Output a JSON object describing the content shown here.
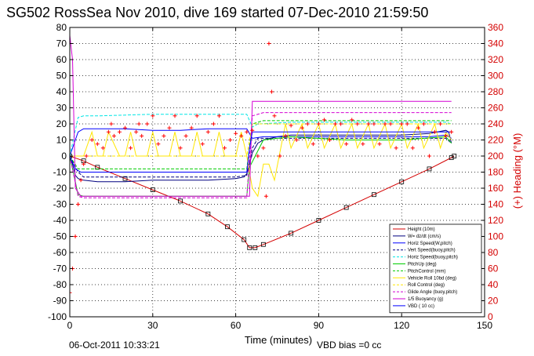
{
  "title": "SG502 RossSea Nov 2010, dive 169 started 07-Dec-2010 21:59:50",
  "footer_left": "06-Oct-2011 10:33:21",
  "footer_right": "VBD bias =0 cc",
  "chart_data": {
    "type": "line",
    "xlabel": "Time (minutes)",
    "ylabel": "",
    "ylabel_right": "(+) Heading (°M)",
    "xlim": [
      0,
      150
    ],
    "ylim": [
      -100,
      80
    ],
    "ylim_right": [
      0,
      360
    ],
    "xticks": [
      "0",
      "30",
      "60",
      "90",
      "120",
      "150"
    ],
    "yticks": [
      "80",
      "70",
      "60",
      "50",
      "40",
      "30",
      "20",
      "10",
      "0",
      "-10",
      "-20",
      "-30",
      "-40",
      "-50",
      "-60",
      "-70",
      "-80",
      "-90",
      "-100"
    ],
    "yticks_right": [
      "360",
      "340",
      "320",
      "300",
      "280",
      "260",
      "240",
      "220",
      "200",
      "180",
      "160",
      "140",
      "120",
      "100",
      "80",
      "60",
      "40",
      "20",
      "0"
    ],
    "grid": true,
    "legend_position": "bottom-right",
    "series": [
      {
        "name": "Height (10m)",
        "color": "#d40000",
        "style": "solid",
        "marker": "box",
        "x": [
          0,
          5,
          10,
          20,
          30,
          40,
          50,
          57,
          63,
          65,
          67,
          70,
          80,
          90,
          100,
          110,
          120,
          130,
          138,
          139
        ],
        "y": [
          0,
          -3,
          -7,
          -14,
          -21,
          -28,
          -36,
          -44,
          -52,
          -57,
          -57,
          -55,
          -48,
          -40,
          -32,
          -24,
          -16,
          -8,
          -1,
          0
        ]
      },
      {
        "name": "W= dz/dt (cm/s)",
        "color": "#000080",
        "style": "solid",
        "x": [
          0,
          1,
          2,
          3,
          5,
          10,
          20,
          30,
          40,
          50,
          60,
          63,
          64,
          65,
          66,
          68,
          70,
          75,
          80,
          90,
          100,
          110,
          120,
          130,
          136,
          137,
          138
        ],
        "y": [
          0,
          -5,
          -12,
          -14,
          -15,
          -16,
          -16,
          -15,
          -15,
          -15,
          -14,
          -13,
          -11,
          -5,
          2,
          8,
          10,
          12,
          13,
          13,
          13,
          13,
          13,
          14,
          16,
          15,
          8
        ]
      },
      {
        "name": "Horiz Speed(W,pitch)",
        "color": "#0000ff",
        "style": "solid",
        "x": [
          0,
          3,
          5,
          10,
          20,
          30,
          40,
          50,
          60,
          64,
          65,
          66,
          70,
          80,
          90,
          100,
          110,
          120,
          130,
          136,
          138
        ],
        "y": [
          0,
          15,
          17,
          17,
          17,
          16,
          16,
          17,
          17,
          17,
          14,
          11,
          12,
          12,
          12,
          12,
          12,
          12,
          12,
          13,
          11
        ]
      },
      {
        "name": "Vert Speed(buoy,pitch)",
        "color": "#000080",
        "style": "dashed",
        "x": [
          0,
          3,
          5,
          10,
          30,
          60,
          64,
          66,
          68,
          80,
          100,
          120,
          136,
          138
        ],
        "y": [
          0,
          -10,
          -13,
          -13,
          -13,
          -13,
          -12,
          5,
          11,
          11,
          11,
          11,
          11,
          8
        ]
      },
      {
        "name": "Horiz Speed(buoy,pitch)",
        "color": "#00e5e5",
        "style": "dashed",
        "x": [
          0,
          3,
          5,
          10,
          30,
          60,
          64,
          66,
          68,
          80,
          100,
          120,
          136,
          138
        ],
        "y": [
          0,
          24,
          25,
          25,
          26,
          26,
          26,
          18,
          20,
          21,
          21,
          21,
          21,
          20
        ]
      },
      {
        "name": "PitchUp (deg)",
        "color": "#00cc00",
        "style": "solid",
        "x": [
          0,
          3,
          5,
          60,
          64,
          65,
          70,
          80,
          100,
          120,
          136,
          138
        ],
        "y": [
          0,
          -24,
          -25,
          -25,
          -25,
          -7,
          10,
          12,
          10,
          10,
          12,
          8
        ]
      },
      {
        "name": "PitchControl (mm)",
        "color": "#00cc00",
        "style": "dashed",
        "x": [
          0,
          3,
          5,
          60,
          64,
          66,
          70,
          138
        ],
        "y": [
          0,
          -8,
          -8,
          -8,
          -8,
          20,
          22,
          22
        ]
      },
      {
        "name": "Vehicle Roll 10bd (deg)",
        "color": "#ffe600",
        "style": "solid",
        "x": [
          0,
          5,
          8,
          10,
          12,
          14,
          18,
          20,
          22,
          24,
          28,
          30,
          32,
          36,
          38,
          40,
          44,
          46,
          48,
          52,
          54,
          56,
          60,
          62,
          64,
          66,
          68,
          70,
          72,
          74,
          78,
          80,
          84,
          86,
          90,
          92,
          96,
          98,
          102,
          104,
          108,
          110,
          114,
          116,
          120,
          122,
          126,
          128,
          132,
          134,
          136,
          138
        ],
        "y": [
          0,
          0,
          15,
          0,
          0,
          15,
          0,
          0,
          15,
          0,
          0,
          15,
          0,
          0,
          15,
          0,
          0,
          15,
          0,
          0,
          15,
          0,
          0,
          15,
          0,
          -20,
          -25,
          -5,
          -5,
          -15,
          20,
          5,
          20,
          5,
          20,
          5,
          20,
          5,
          20,
          5,
          20,
          5,
          20,
          5,
          20,
          5,
          20,
          5,
          20,
          5,
          15,
          10
        ]
      },
      {
        "name": "Roll Control (deg)",
        "color": "#ffe600",
        "style": "dashed",
        "x": [
          0,
          5,
          60,
          64,
          66,
          80,
          100,
          120,
          138
        ],
        "y": [
          0,
          0,
          0,
          0,
          20,
          20,
          20,
          20,
          20
        ]
      },
      {
        "name": "Glide Angle (buoy,pitch)",
        "color": "#d400d4",
        "style": "dashed",
        "x": [
          0,
          3,
          5,
          60,
          64,
          66,
          70,
          100,
          138
        ],
        "y": [
          0,
          -25,
          -26,
          -26,
          -26,
          25,
          27,
          27,
          27
        ]
      },
      {
        "name": "1/5 Buoyancy (g)",
        "color": "#d400d4",
        "style": "solid",
        "x": [
          0,
          1,
          2,
          4,
          5,
          30,
          60,
          64,
          65,
          66,
          100,
          138
        ],
        "y": [
          75,
          60,
          -20,
          -25,
          -25,
          -25,
          -25,
          -25,
          -25,
          34,
          34,
          34
        ]
      },
      {
        "name": "VBD ( 10 cc)",
        "color": "#0000ff",
        "style": "solid",
        "x": [
          0,
          2,
          4,
          5,
          30,
          60,
          64,
          65,
          66,
          100,
          138
        ],
        "y": [
          0,
          -8,
          -10,
          -10,
          -10,
          -10,
          -10,
          5,
          15,
          15,
          15
        ]
      },
      {
        "name": "Heading (°M)",
        "color": "#ff0000",
        "style": "marker",
        "marker": "plus",
        "axis": "right",
        "x": [
          0,
          1,
          2,
          3,
          4,
          5,
          6,
          8,
          10,
          12,
          14,
          15,
          16,
          18,
          20,
          22,
          24,
          25,
          26,
          28,
          30,
          32,
          34,
          36,
          38,
          40,
          42,
          44,
          46,
          48,
          50,
          52,
          54,
          56,
          58,
          60,
          62,
          64,
          66,
          68,
          70,
          71,
          72,
          73,
          74,
          76,
          78,
          80,
          82,
          84,
          86,
          88,
          90,
          92,
          94,
          96,
          98,
          100,
          102,
          104,
          106,
          108,
          110,
          112,
          114,
          116,
          118,
          120,
          122,
          124,
          126,
          128,
          130,
          132,
          134,
          136,
          138
        ],
        "y": [
          30,
          60,
          100,
          140,
          170,
          190,
          200,
          220,
          215,
          210,
          230,
          240,
          225,
          230,
          235,
          210,
          230,
          240,
          225,
          240,
          250,
          215,
          225,
          235,
          250,
          210,
          225,
          235,
          250,
          215,
          230,
          240,
          250,
          210,
          220,
          228,
          225,
          230,
          232,
          200,
          210,
          150,
          340,
          280,
          250,
          200,
          225,
          238,
          220,
          235,
          240,
          215,
          240,
          245,
          220,
          240,
          240,
          215,
          245,
          240,
          215,
          240,
          240,
          215,
          240,
          240,
          210,
          240,
          240,
          210,
          235,
          240,
          200,
          230,
          240,
          225,
          230
        ]
      }
    ]
  }
}
